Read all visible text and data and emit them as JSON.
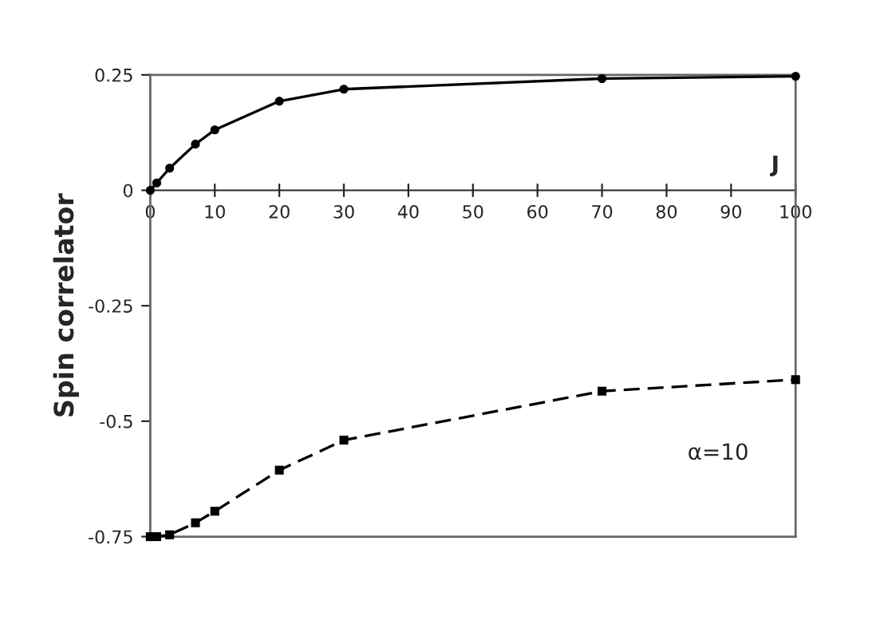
{
  "chart_data": {
    "type": "line",
    "ylabel": "Spin correlator",
    "annotations": [
      "J",
      "α=10"
    ],
    "xlim": [
      0,
      100
    ],
    "xticks": [
      0,
      10,
      20,
      30,
      40,
      50,
      60,
      70,
      80,
      90,
      100
    ],
    "ylim": [
      -0.75,
      0.25
    ],
    "yticks": [
      -0.75,
      -0.5,
      -0.25,
      0,
      0.25
    ],
    "grid": false,
    "legend": false,
    "series": [
      {
        "color": "#000000",
        "marker": "circle",
        "line_style": "solid",
        "x": [
          0,
          1,
          3,
          7,
          10,
          20,
          30,
          70,
          100
        ],
        "values": [
          0,
          0.016,
          0.048,
          0.1,
          0.131,
          0.193,
          0.219,
          0.242,
          0.247
        ]
      },
      {
        "color": "#000000",
        "marker": "square",
        "line_style": "dashed",
        "x": [
          0,
          1,
          3,
          7,
          10,
          20,
          30,
          70,
          100
        ],
        "values": [
          -0.75,
          -0.75,
          -0.746,
          -0.72,
          -0.695,
          -0.606,
          -0.541,
          -0.435,
          -0.41
        ]
      }
    ]
  }
}
